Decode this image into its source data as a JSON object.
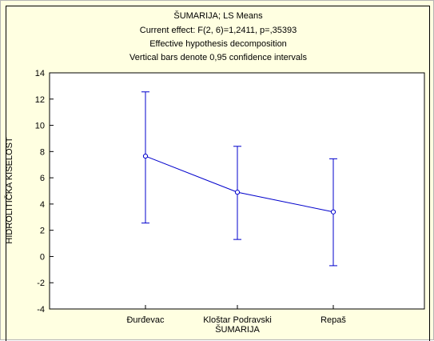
{
  "chart_data": {
    "type": "line",
    "title": "ŠUMARIJA; LS Means",
    "subtitle_lines": [
      "Current effect: F(2, 6)=1,2411, p=,35393",
      "Effective hypothesis decomposition",
      "Vertical bars denote 0,95 confidence intervals"
    ],
    "xlabel": "ŠUMARIJA",
    "ylabel": "HIDROLITIČKA KISELOST",
    "categories": [
      "Đurđevac",
      "Kloštar Podravski",
      "Repaš"
    ],
    "y_ticks": [
      "14",
      "12",
      "10",
      "8",
      "6",
      "4",
      "2",
      "0",
      "-2",
      "-4"
    ],
    "ylim": [
      -4,
      14
    ],
    "grid": false,
    "series": [
      {
        "values": [
          7.65,
          4.9,
          3.4
        ],
        "ci_lower": [
          2.55,
          1.3,
          -0.7
        ],
        "ci_upper": [
          12.55,
          8.4,
          7.45
        ],
        "color": "#0000cc"
      }
    ]
  }
}
